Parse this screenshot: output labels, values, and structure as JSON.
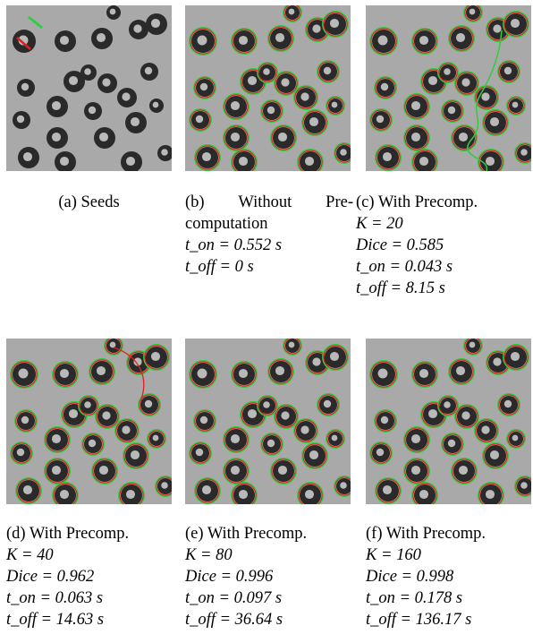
{
  "panels": [
    {
      "id": "a",
      "caption_lines": [
        "(a) Seeds"
      ]
    },
    {
      "id": "b",
      "caption_lines": [
        "(b)",
        "Without",
        "Pre-",
        "computation"
      ],
      "t_on": "t_on = 0.552 s",
      "t_off": "t_off = 0 s"
    },
    {
      "id": "c",
      "label": "(c) With Precomp.",
      "K": "K = 20",
      "Dice": "Dice = 0.585",
      "t_on": "t_on = 0.043 s",
      "t_off": "t_off = 8.15 s"
    },
    {
      "id": "d",
      "label": "(d) With Precomp.",
      "K": "K = 40",
      "Dice": "Dice = 0.962",
      "t_on": "t_on = 0.063 s",
      "t_off": "t_off = 14.63 s"
    },
    {
      "id": "e",
      "label": "(e) With Precomp.",
      "K": "K = 80",
      "Dice": "Dice = 0.996",
      "t_on": "t_on = 0.097 s",
      "t_off": "t_off = 36.64 s"
    },
    {
      "id": "f",
      "label": "(f) With Precomp.",
      "K": "K = 160",
      "Dice": "Dice = 0.998",
      "t_on": "t_on = 0.178 s",
      "t_off": "t_off = 136.17 s"
    }
  ],
  "colors": {
    "background": "#a9a9a9",
    "cell_dark": "#2a2a2a",
    "cell_center": "#b9b9b9",
    "contour_green": "#2ecc40",
    "contour_red": "#e0201b"
  }
}
